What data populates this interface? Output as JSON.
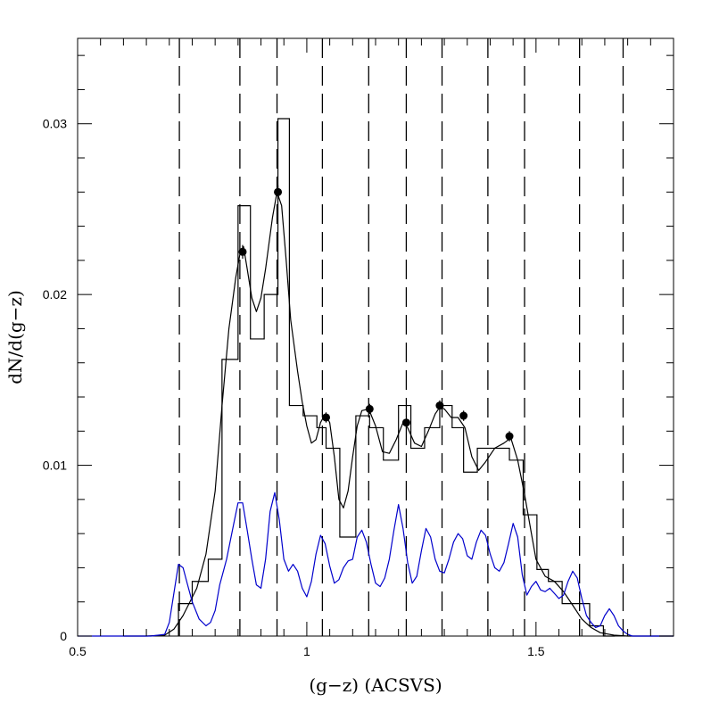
{
  "chart_data": {
    "type": "line",
    "xlabel": "(g−z)  (ACSVS)",
    "ylabel": "dN/d(g−z)",
    "xlim": [
      0.5,
      1.8
    ],
    "ylim": [
      0,
      0.035
    ],
    "x_ticks": [
      {
        "value": 0.5,
        "label": "0.5"
      },
      {
        "value": 1.0,
        "label": "1"
      },
      {
        "value": 1.5,
        "label": "1.5"
      }
    ],
    "y_ticks": [
      {
        "value": 0,
        "label": "0"
      },
      {
        "value": 0.01,
        "label": "0.01"
      },
      {
        "value": 0.02,
        "label": "0.02"
      },
      {
        "value": 0.03,
        "label": "0.03"
      }
    ],
    "dashed_vertical_lines": [
      0.722,
      0.854,
      0.935,
      1.034,
      1.135,
      1.217,
      1.295,
      1.395,
      1.475,
      1.595,
      1.69
    ],
    "histogram": {
      "edges": [
        0.72,
        0.75,
        0.785,
        0.815,
        0.85,
        0.877,
        0.907,
        0.937,
        0.962,
        0.992,
        1.022,
        1.042,
        1.072,
        1.107,
        1.137,
        1.167,
        1.2,
        1.227,
        1.257,
        1.29,
        1.317,
        1.342,
        1.372,
        1.402,
        1.442,
        1.472,
        1.502,
        1.527,
        1.557,
        1.617,
        1.647,
        1.672
      ],
      "values": [
        0.0019,
        0.0032,
        0.0045,
        0.0162,
        0.0252,
        0.0174,
        0.02,
        0.0303,
        0.0135,
        0.0129,
        0.0122,
        0.011,
        0.0058,
        0.0129,
        0.0122,
        0.0103,
        0.0135,
        0.011,
        0.0122,
        0.0135,
        0.0122,
        0.0096,
        0.011,
        0.011,
        0.0103,
        0.0071,
        0.0039,
        0.0032,
        0.0019,
        0.0006,
        0.0
      ]
    },
    "series": [
      {
        "color": "#000000",
        "x": [
          0.6,
          0.65,
          0.69,
          0.71,
          0.73,
          0.76,
          0.78,
          0.8,
          0.815,
          0.83,
          0.845,
          0.855,
          0.862,
          0.87,
          0.88,
          0.89,
          0.9,
          0.91,
          0.925,
          0.935,
          0.945,
          0.955,
          0.965,
          0.98,
          0.99,
          1.0,
          1.01,
          1.02,
          1.03,
          1.04,
          1.05,
          1.06,
          1.07,
          1.08,
          1.09,
          1.1,
          1.11,
          1.12,
          1.135,
          1.15,
          1.165,
          1.18,
          1.195,
          1.21,
          1.22,
          1.235,
          1.25,
          1.265,
          1.28,
          1.29,
          1.3,
          1.315,
          1.33,
          1.345,
          1.36,
          1.375,
          1.39,
          1.41,
          1.43,
          1.445,
          1.46,
          1.475,
          1.49,
          1.5,
          1.52,
          1.54,
          1.56,
          1.58,
          1.6,
          1.62,
          1.64,
          1.67,
          1.7,
          1.8
        ],
        "y": [
          0.0,
          0.0,
          5e-05,
          0.0004,
          0.0012,
          0.0028,
          0.0048,
          0.0085,
          0.0135,
          0.018,
          0.021,
          0.0225,
          0.0228,
          0.0215,
          0.0198,
          0.019,
          0.0198,
          0.0215,
          0.0245,
          0.026,
          0.0252,
          0.022,
          0.0185,
          0.0155,
          0.0137,
          0.0123,
          0.0113,
          0.0115,
          0.0125,
          0.013,
          0.0125,
          0.0105,
          0.008,
          0.0075,
          0.0085,
          0.0105,
          0.0123,
          0.0132,
          0.0133,
          0.0123,
          0.0108,
          0.0107,
          0.0115,
          0.0125,
          0.0122,
          0.0113,
          0.0111,
          0.012,
          0.013,
          0.0134,
          0.0133,
          0.0128,
          0.0128,
          0.0122,
          0.0105,
          0.0097,
          0.0102,
          0.011,
          0.0113,
          0.0116,
          0.0103,
          0.0083,
          0.006,
          0.0045,
          0.0035,
          0.0032,
          0.0026,
          0.0018,
          0.001,
          0.0005,
          0.0002,
          5e-05,
          0.0,
          0.0
        ]
      },
      {
        "color": "#0000cc",
        "x": [
          0.5,
          0.66,
          0.69,
          0.7,
          0.71,
          0.72,
          0.73,
          0.74,
          0.75,
          0.765,
          0.78,
          0.79,
          0.8,
          0.81,
          0.825,
          0.84,
          0.85,
          0.86,
          0.87,
          0.88,
          0.89,
          0.9,
          0.91,
          0.92,
          0.93,
          0.94,
          0.95,
          0.96,
          0.97,
          0.98,
          0.99,
          1.0,
          1.01,
          1.02,
          1.03,
          1.04,
          1.05,
          1.06,
          1.07,
          1.08,
          1.09,
          1.1,
          1.11,
          1.12,
          1.13,
          1.14,
          1.15,
          1.16,
          1.17,
          1.18,
          1.19,
          1.2,
          1.21,
          1.22,
          1.23,
          1.24,
          1.25,
          1.26,
          1.27,
          1.28,
          1.29,
          1.3,
          1.31,
          1.32,
          1.33,
          1.34,
          1.35,
          1.36,
          1.37,
          1.38,
          1.39,
          1.4,
          1.41,
          1.42,
          1.43,
          1.44,
          1.45,
          1.46,
          1.47,
          1.48,
          1.49,
          1.5,
          1.51,
          1.52,
          1.53,
          1.54,
          1.55,
          1.56,
          1.57,
          1.58,
          1.59,
          1.6,
          1.61,
          1.62,
          1.63,
          1.64,
          1.65,
          1.66,
          1.67,
          1.68,
          1.69,
          1.7,
          1.71,
          1.73,
          1.8
        ],
        "y": [
          0.0,
          0.0,
          0.0001,
          0.0008,
          0.0025,
          0.0042,
          0.004,
          0.003,
          0.002,
          0.001,
          0.0006,
          0.0008,
          0.0015,
          0.003,
          0.0045,
          0.0065,
          0.0078,
          0.0078,
          0.0062,
          0.0045,
          0.003,
          0.0028,
          0.0045,
          0.0073,
          0.0084,
          0.0068,
          0.0045,
          0.0038,
          0.0042,
          0.0038,
          0.0028,
          0.0023,
          0.0032,
          0.0048,
          0.0059,
          0.0054,
          0.0041,
          0.0031,
          0.0033,
          0.004,
          0.0044,
          0.0045,
          0.0058,
          0.0062,
          0.0055,
          0.0042,
          0.0031,
          0.0029,
          0.0034,
          0.0045,
          0.0062,
          0.0077,
          0.0063,
          0.0043,
          0.0031,
          0.0035,
          0.005,
          0.0063,
          0.0058,
          0.0045,
          0.0038,
          0.0037,
          0.0045,
          0.0055,
          0.006,
          0.0057,
          0.0047,
          0.0045,
          0.0055,
          0.0062,
          0.0059,
          0.0048,
          0.004,
          0.0038,
          0.0043,
          0.0054,
          0.0066,
          0.0058,
          0.0036,
          0.0024,
          0.0029,
          0.0032,
          0.0027,
          0.0026,
          0.0028,
          0.0025,
          0.0022,
          0.0024,
          0.0032,
          0.0038,
          0.0034,
          0.0022,
          0.0012,
          0.0008,
          0.0005,
          0.0006,
          0.0012,
          0.0016,
          0.0012,
          0.0006,
          0.0003,
          0.0001,
          0.0,
          0.0,
          0.0
        ]
      }
    ],
    "points": {
      "x": [
        0.86,
        0.937,
        1.042,
        1.137,
        1.217,
        1.29,
        1.342,
        1.442
      ],
      "y": [
        0.0225,
        0.026,
        0.0128,
        0.0133,
        0.0125,
        0.0135,
        0.0129,
        0.0117
      ],
      "err": [
        0.0004,
        0.0004,
        0.0003,
        0.0003,
        0.0003,
        0.0003,
        0.0003,
        0.0003
      ]
    },
    "grid": false
  }
}
